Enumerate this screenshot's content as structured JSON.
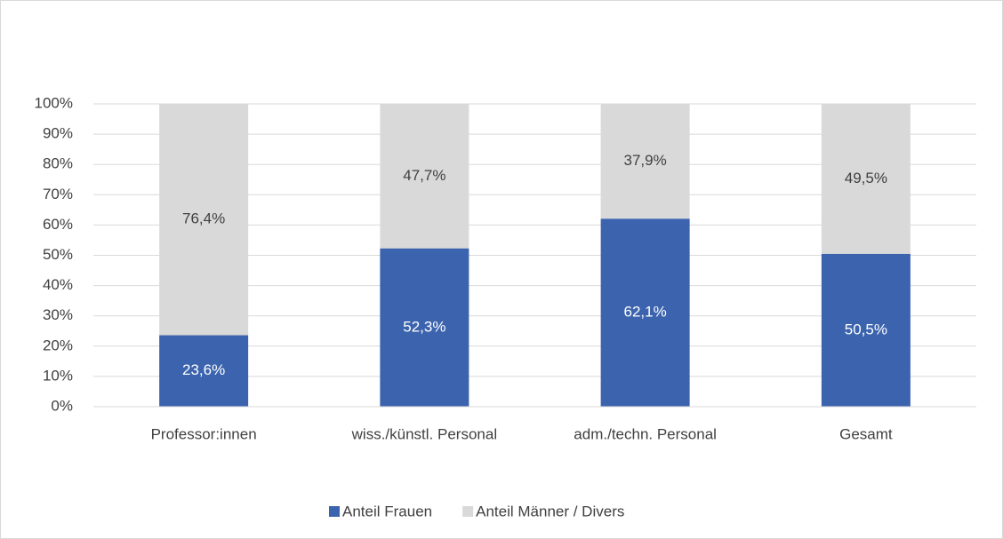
{
  "chart_data": {
    "type": "stacked_bar",
    "categories": [
      "Professor:innen",
      "wiss./künstl. Personal",
      "adm./techn. Personal",
      "Gesamt"
    ],
    "series": [
      {
        "name": "Anteil Frauen",
        "color": "#3c64ae",
        "values": [
          23.6,
          52.3,
          62.1,
          50.5
        ],
        "value_labels": [
          "23,6%",
          "52,3%",
          "62,1%",
          "50,5%"
        ]
      },
      {
        "name": "Anteil Männer / Divers",
        "color": "#d9d9d9",
        "values": [
          76.4,
          47.7,
          37.9,
          49.5
        ],
        "value_labels": [
          "76,4%",
          "47,7%",
          "37,9%",
          "49,5%"
        ]
      }
    ],
    "ylim": [
      0,
      100
    ],
    "yticks": [
      {
        "value": 0,
        "label": "0%"
      },
      {
        "value": 10,
        "label": "10%"
      },
      {
        "value": 20,
        "label": "20%"
      },
      {
        "value": 30,
        "label": "30%"
      },
      {
        "value": 40,
        "label": "40%"
      },
      {
        "value": 50,
        "label": "50%"
      },
      {
        "value": 60,
        "label": "60%"
      },
      {
        "value": 70,
        "label": "70%"
      },
      {
        "value": 80,
        "label": "80%"
      },
      {
        "value": 90,
        "label": "90%"
      },
      {
        "value": 100,
        "label": "100%"
      }
    ],
    "grid": true,
    "legend": "bottom"
  }
}
